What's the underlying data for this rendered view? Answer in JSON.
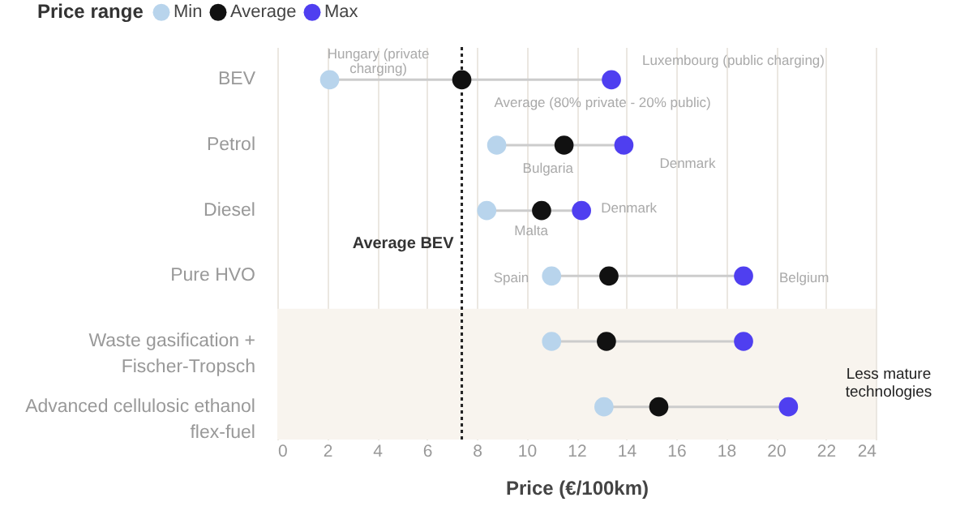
{
  "chart_data": {
    "type": "scatter",
    "orientation": "horizontal",
    "legend_title": "Price range",
    "legend": "top left",
    "xlabel": "Price (€/100km)",
    "grid": "x",
    "marker": "circle",
    "categories": [
      "BEV",
      "Petrol",
      "Diesel",
      "Pure HVO",
      "Waste gasification + Fischer-Tropsch",
      "Advanced cellulosic ethanol flex-fuel"
    ],
    "series": [
      {
        "name": "Min",
        "color": "#b8d4ec",
        "values": [
          2.1,
          8.8,
          8.4,
          11.0,
          11.0,
          13.1
        ]
      },
      {
        "name": "Average",
        "color": "#111111",
        "values": [
          7.4,
          11.5,
          10.6,
          13.3,
          13.2,
          15.3
        ]
      },
      {
        "name": "Max",
        "color": "#4f3ff0",
        "values": [
          13.4,
          13.9,
          12.2,
          18.7,
          18.7,
          20.5
        ]
      }
    ],
    "xlim": [
      0,
      24
    ],
    "xticks": [
      0,
      2,
      4,
      6,
      8,
      10,
      12,
      14,
      16,
      18,
      20,
      22,
      24
    ],
    "ref_lines": [
      {
        "axis": "x",
        "value": 7.4,
        "label": "Average BEV",
        "line_style": "dotted",
        "color": "#222222"
      }
    ],
    "bands": [
      {
        "axis": "y",
        "from": "Waste gasification + Fischer-Tropsch",
        "to": "Advanced cellulosic ethanol flex-fuel",
        "label": "Less mature technologies",
        "color": "#f8f4ee"
      }
    ],
    "annotations": [
      {
        "text": "Hungary (private charging)",
        "x": 2.1,
        "y": "BEV"
      },
      {
        "text": "Luxembourg (public charging)",
        "x": 13.4,
        "y": "BEV"
      },
      {
        "text": "Average (80% private - 20% public)",
        "x": 7.4,
        "y": "BEV"
      },
      {
        "text": "Bulgaria",
        "x": 8.8,
        "y": "Petrol"
      },
      {
        "text": "Denmark",
        "x": 13.9,
        "y": "Petrol"
      },
      {
        "text": "Malta",
        "x": 8.4,
        "y": "Diesel"
      },
      {
        "text": "Denmark",
        "x": 12.2,
        "y": "Diesel"
      },
      {
        "text": "Spain",
        "x": 11.0,
        "y": "Pure HVO"
      },
      {
        "text": "Belgium",
        "x": 18.7,
        "y": "Pure HVO"
      }
    ]
  }
}
